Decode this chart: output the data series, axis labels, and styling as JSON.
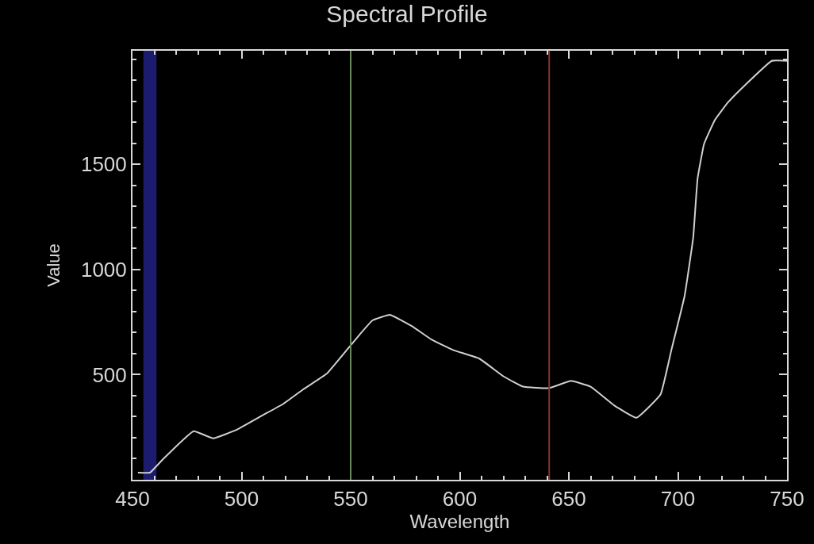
{
  "chart_data": {
    "type": "line",
    "title": "Spectral Profile",
    "xlabel": "Wavelength",
    "ylabel": "Value",
    "x": [
      452.5,
      458,
      464,
      478,
      487,
      498,
      509,
      519,
      528,
      539,
      547,
      554,
      560,
      568,
      578,
      587,
      597,
      609,
      620,
      629,
      641,
      651,
      660,
      671,
      681,
      692,
      697,
      703,
      707,
      709,
      712,
      717,
      723,
      731,
      743,
      750
    ],
    "series": [
      {
        "color": "#d0d0d0",
        "values": [
          34,
          34,
          98,
          231,
          197,
          239,
          303,
          360,
          428,
          504,
          602,
          689,
          758,
          784,
          731,
          667,
          617,
          576,
          492,
          443,
          436,
          470,
          443,
          352,
          295,
          405,
          617,
          871,
          1152,
          1432,
          1598,
          1712,
          1795,
          1879,
          1992,
          1992
        ]
      }
    ],
    "xlim": [
      450,
      750
    ],
    "xticks": [
      450,
      500,
      550,
      600,
      650,
      700,
      750
    ],
    "ylim": [
      0,
      2040
    ],
    "yticks": [
      500,
      1000,
      1500
    ],
    "bands": [
      {
        "axis": "x",
        "from": 455,
        "to": 461,
        "color": "#1c1c6e"
      }
    ],
    "ref_lines": [
      {
        "axis": "x",
        "value": 550,
        "color": "#6a8a5a"
      },
      {
        "axis": "x",
        "value": 641,
        "color": "#8a3535"
      }
    ],
    "grid": false,
    "marker": "none",
    "line_style": "solid"
  }
}
